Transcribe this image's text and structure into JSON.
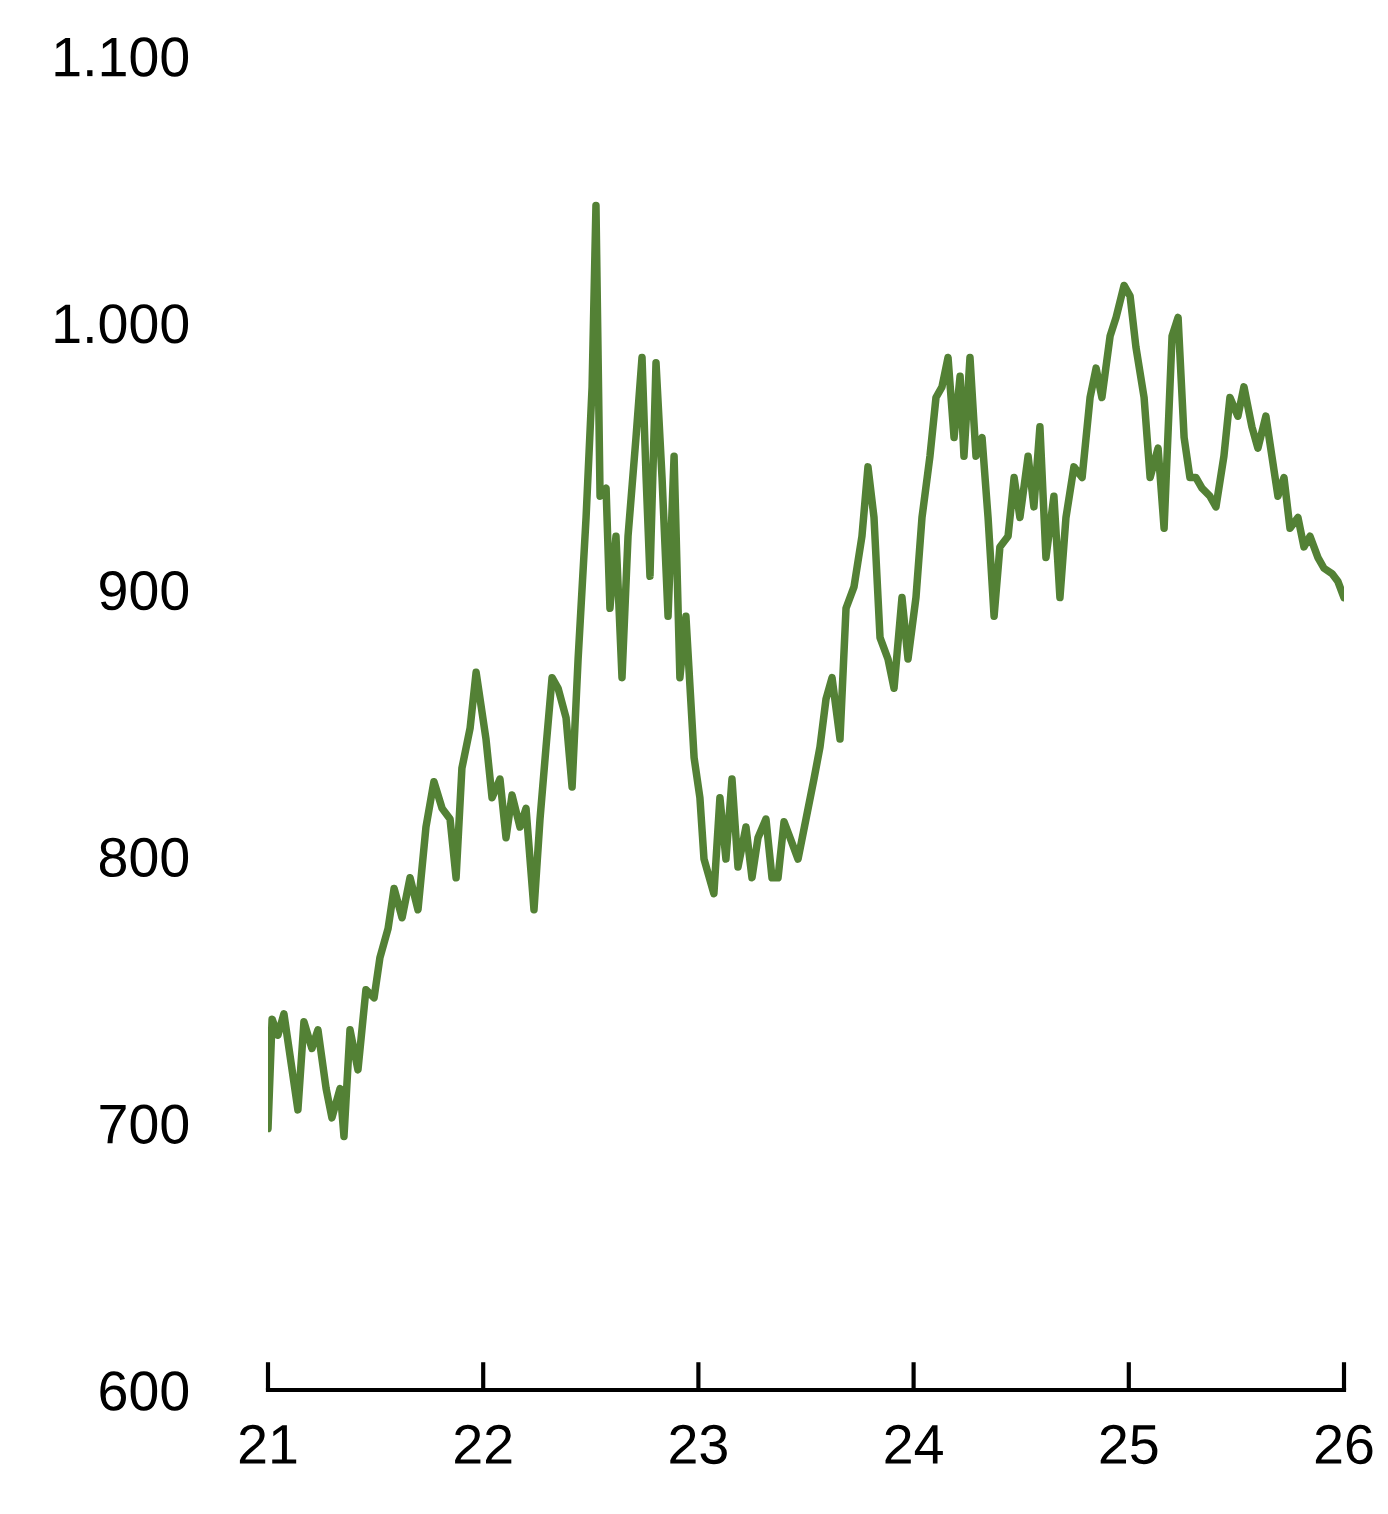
{
  "chart_data": {
    "type": "line",
    "color": "#538135",
    "x": [
      21.0,
      21.019,
      21.046,
      21.074,
      21.112,
      21.139,
      21.167,
      21.204,
      21.232,
      21.27,
      21.297,
      21.335,
      21.353,
      21.381,
      21.418,
      21.455,
      21.493,
      21.52,
      21.558,
      21.586,
      21.623,
      21.66,
      21.697,
      21.734,
      21.771,
      21.809,
      21.846,
      21.874,
      21.901,
      21.939,
      21.967,
      22.013,
      22.041,
      22.078,
      22.106,
      22.134,
      22.171,
      22.199,
      22.236,
      22.264,
      22.292,
      22.32,
      22.348,
      22.385,
      22.413,
      22.441,
      22.478,
      22.506,
      22.524,
      22.543,
      22.571,
      22.589,
      22.617,
      22.645,
      22.673,
      22.71,
      22.738,
      22.757,
      22.775,
      22.803,
      22.831,
      22.859,
      22.887,
      22.914,
      22.942,
      22.98,
      23.007,
      23.026,
      23.072,
      23.1,
      23.128,
      23.156,
      23.184,
      23.221,
      23.249,
      23.277,
      23.314,
      23.342,
      23.37,
      23.398,
      23.426,
      23.463,
      23.5,
      23.537,
      23.565,
      23.593,
      23.621,
      23.658,
      23.686,
      23.723,
      23.76,
      23.788,
      23.816,
      23.844,
      23.881,
      23.909,
      23.946,
      23.974,
      24.011,
      24.039,
      24.076,
      24.104,
      24.132,
      24.16,
      24.188,
      24.216,
      24.234,
      24.262,
      24.29,
      24.318,
      24.346,
      24.374,
      24.401,
      24.439,
      24.467,
      24.494,
      24.532,
      24.559,
      24.587,
      24.615,
      24.652,
      24.68,
      24.708,
      24.745,
      24.783,
      24.82,
      24.848,
      24.875,
      24.913,
      24.941,
      24.978,
      25.006,
      25.033,
      25.071,
      25.099,
      25.136,
      25.164,
      25.201,
      25.229,
      25.257,
      25.284,
      25.312,
      25.34,
      25.377,
      25.405,
      25.442,
      25.47,
      25.507,
      25.535,
      25.572,
      25.6,
      25.637,
      25.665,
      25.693,
      25.721,
      25.749,
      25.786,
      25.814,
      25.842,
      25.879,
      25.907,
      25.944,
      25.972,
      26.0
    ],
    "values": [
      698,
      739,
      733,
      741,
      720,
      705,
      738,
      728,
      735,
      713,
      702,
      713,
      695,
      735,
      720,
      750,
      747,
      762,
      773,
      788,
      777,
      792,
      780,
      811,
      828,
      818,
      814,
      792,
      833,
      848,
      869,
      844,
      822,
      829,
      807,
      823,
      811,
      818,
      780,
      814,
      841,
      867,
      863,
      852,
      826,
      874,
      927,
      976,
      1044,
      935,
      938,
      893,
      920,
      867,
      920,
      957,
      987,
      942,
      905,
      985,
      942,
      890,
      950,
      867,
      890,
      837,
      822,
      799,
      786,
      822,
      799,
      829,
      796,
      811,
      792,
      807,
      814,
      792,
      792,
      813,
      807,
      799,
      814,
      829,
      841,
      859,
      867,
      844,
      893,
      901,
      920,
      946,
      927,
      882,
      874,
      863,
      897,
      874,
      897,
      927,
      950,
      972,
      976,
      987,
      957,
      980,
      950,
      987,
      950,
      957,
      927,
      890,
      916,
      920,
      942,
      927,
      950,
      931,
      961,
      912,
      935,
      897,
      927,
      946,
      942,
      972,
      983,
      972,
      995,
      1002,
      1014,
      1010,
      991,
      972,
      942,
      953,
      923,
      995,
      1002,
      957,
      942,
      942,
      938,
      935,
      931,
      950,
      972,
      965,
      976,
      961,
      953,
      965,
      950,
      935,
      942,
      923,
      927,
      916,
      920,
      912,
      908,
      906,
      903,
      897
    ],
    "xlim": [
      21,
      26
    ],
    "xticks": [
      21,
      22,
      23,
      24,
      25,
      26
    ],
    "ylim": [
      600,
      1100
    ],
    "yticks": [
      600,
      700,
      800,
      900,
      {
        "value": 1000,
        "label": "1.000"
      },
      {
        "value": 1100,
        "label": "1.100"
      }
    ],
    "grid": false,
    "legend": false,
    "marker": "none",
    "line_style": "solid"
  }
}
